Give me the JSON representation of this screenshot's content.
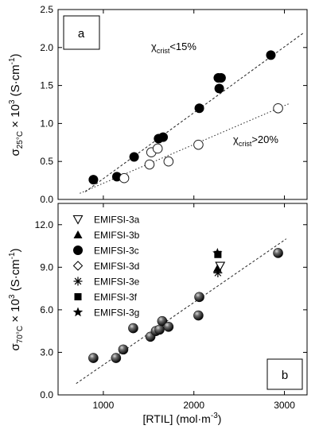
{
  "chart_data": [
    {
      "type": "scatter",
      "panel_label": "a",
      "ylabel": "σ25°C × 10³ (S·cm⁻¹)",
      "ylabel_parts": {
        "sym": "σ",
        "sub": "25°C",
        "mid": " × 10",
        "sup": "3",
        "unit_pre": " (S·cm",
        "unit_sup": "-1",
        "unit_post": ")"
      },
      "ylim": [
        0,
        2.5
      ],
      "xlim": [
        500,
        3250
      ],
      "yticks": [
        "0.0",
        "0.5",
        "1.0",
        "1.5",
        "2.0",
        "2.5"
      ],
      "yticks_values": [
        0,
        0.5,
        1.0,
        1.5,
        2.0,
        2.5
      ],
      "grid": false,
      "annotations": [
        {
          "text_pre": "χ",
          "sub": "crist",
          "text_post": "<15%"
        },
        {
          "text_pre": "χ",
          "sub": "crist",
          "text_post": ">20%"
        }
      ],
      "series": [
        {
          "marker": "filled-circle",
          "points": [
            [
              890,
              0.26
            ],
            [
              1150,
              0.3
            ],
            [
              1340,
              0.56
            ],
            [
              1610,
              0.8
            ],
            [
              1660,
              0.82
            ],
            [
              2060,
              1.2
            ],
            [
              2270,
              1.6
            ],
            [
              2300,
              1.6
            ],
            [
              2280,
              1.46
            ],
            [
              2850,
              1.9
            ]
          ],
          "fit": [
            [
              800,
              0.1
            ],
            [
              3220,
              2.2
            ]
          ]
        },
        {
          "marker": "open-circle",
          "points": [
            [
              1230,
              0.28
            ],
            [
              1510,
              0.46
            ],
            [
              1530,
              0.62
            ],
            [
              1600,
              0.67
            ],
            [
              1720,
              0.5
            ],
            [
              2050,
              0.72
            ],
            [
              2930,
              1.2
            ]
          ],
          "fit": [
            [
              740,
              0.08
            ],
            [
              3050,
              1.26
            ]
          ]
        }
      ]
    },
    {
      "type": "scatter",
      "panel_label": "b",
      "ylabel": "σ70°C × 10³ (S·cm⁻¹)",
      "ylabel_parts": {
        "sym": "σ",
        "sub": "70°C",
        "mid": " × 10",
        "sup": "3",
        "unit_pre": " (S·cm",
        "unit_sup": "-1",
        "unit_post": ")"
      },
      "xlabel": "[RTIL] (mol·m⁻³)",
      "xlabel_parts": {
        "pre": "[RTIL] (mol·m",
        "sup": "-3",
        "post": ")"
      },
      "ylim": [
        0,
        13.5
      ],
      "xlim": [
        500,
        3250
      ],
      "yticks": [
        "0.0",
        "3.0",
        "6.0",
        "9.0",
        "12.0"
      ],
      "yticks_values": [
        0,
        3,
        6,
        9,
        12
      ],
      "xticks": [
        "1000",
        "2000",
        "3000"
      ],
      "xticks_values": [
        1000,
        2000,
        3000
      ],
      "grid": false,
      "legend": {
        "placement": "top-left",
        "entries": [
          {
            "label": "EMIFSI-3a",
            "marker": "open-triangle-down"
          },
          {
            "label": "EMIFSI-3b",
            "marker": "filled-triangle-up"
          },
          {
            "label": "EMIFSI-3c",
            "marker": "filled-circle"
          },
          {
            "label": "EMIFSI-3d",
            "marker": "open-diamond"
          },
          {
            "label": "EMIFSI-3e",
            "marker": "asterisk"
          },
          {
            "label": "EMIFSI-3f",
            "marker": "filled-square"
          },
          {
            "label": "EMIFSI-3g",
            "marker": "filled-star"
          }
        ]
      },
      "series": [
        {
          "name": "EMIFSI-3c",
          "marker": "shaded-sphere",
          "points": [
            [
              890,
              2.6
            ],
            [
              1140,
              2.6
            ],
            [
              1220,
              3.2
            ],
            [
              1330,
              4.7
            ],
            [
              1520,
              4.1
            ],
            [
              1580,
              4.5
            ],
            [
              1620,
              4.6
            ],
            [
              1650,
              5.2
            ],
            [
              1720,
              4.8
            ],
            [
              2050,
              5.6
            ],
            [
              2060,
              6.9
            ],
            [
              2930,
              10.0
            ]
          ],
          "fit": [
            [
              700,
              0.8
            ],
            [
              3020,
              11.0
            ]
          ]
        },
        {
          "name": "EMIFSI-3a",
          "marker": "open-triangle-down",
          "points": [
            [
              2290,
              9.1
            ]
          ]
        },
        {
          "name": "EMIFSI-3b",
          "marker": "filled-triangle-up",
          "points": [
            [
              2260,
              8.9
            ]
          ]
        },
        {
          "name": "EMIFSI-3e",
          "marker": "asterisk",
          "points": [
            [
              2265,
              8.6
            ]
          ]
        },
        {
          "name": "EMIFSI-3g",
          "marker": "filled-star",
          "points": [
            [
              2260,
              10.0
            ]
          ]
        },
        {
          "name": "EMIFSI-3f",
          "marker": "filled-square",
          "points": [
            [
              2265,
              9.9
            ]
          ]
        }
      ]
    }
  ]
}
